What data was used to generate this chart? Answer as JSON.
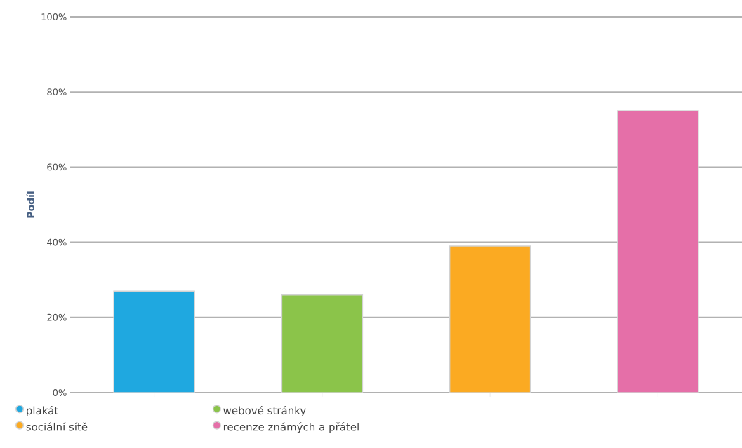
{
  "chart_data": {
    "type": "bar",
    "ylabel": "Podíl",
    "categories": [
      null,
      null,
      null,
      null
    ],
    "series": [
      {
        "name": "plakát",
        "color": "#1fa8e0",
        "values": [
          27,
          null,
          null,
          null
        ]
      },
      {
        "name": "webové stránky",
        "color": "#8bc44a",
        "values": [
          null,
          26,
          null,
          null
        ]
      },
      {
        "name": "sociální sítě",
        "color": "#fbaa22",
        "values": [
          null,
          null,
          39,
          null
        ]
      },
      {
        "name": "recenze známých a přátel",
        "color": "#e56fa8",
        "values": [
          null,
          null,
          null,
          75
        ]
      }
    ],
    "ylim": [
      0,
      100
    ],
    "yticks": [
      {
        "value": 0,
        "label": "0%"
      },
      {
        "value": 20,
        "label": "20%"
      },
      {
        "value": 40,
        "label": "40%"
      },
      {
        "value": 60,
        "label": "60%"
      },
      {
        "value": 80,
        "label": "80%"
      },
      {
        "value": 100,
        "label": "100%"
      }
    ],
    "grid": "y",
    "legend": "bottom"
  }
}
